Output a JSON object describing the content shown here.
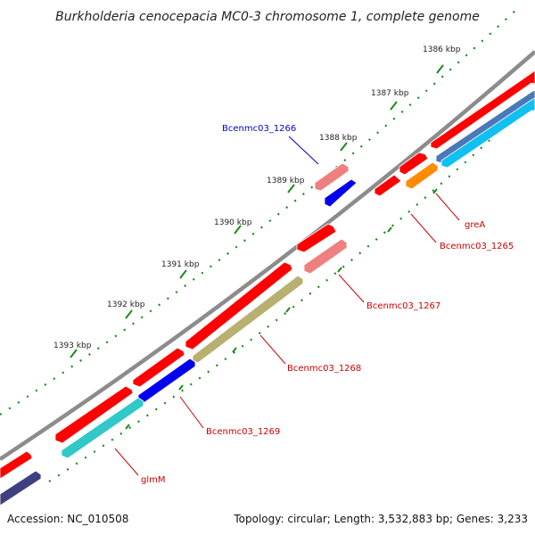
{
  "map": {
    "title": "Burkholderia cenocepacia MC0-3 chromosome 1, complete genome",
    "accession": "Accession: NC_010508",
    "summary": "Topology: circular; Length: 3,532,883 bp; Genes: 3,233"
  },
  "scale": {
    "ticks": [
      "1386 kbp",
      "1387 kbp",
      "1388 kbp",
      "1389 kbp",
      "1390 kbp",
      "1391 kbp",
      "1392 kbp",
      "1393 kbp"
    ]
  },
  "genes": {
    "labels": {
      "bcenmc03_1266": "Bcenmc03_1266",
      "grea": "greA",
      "bcenmc03_1265": "Bcenmc03_1265",
      "bcenmc03_1267": "Bcenmc03_1267",
      "bcenmc03_1268": "Bcenmc03_1268",
      "bcenmc03_1269": "Bcenmc03_1269",
      "glmm": "glmM"
    }
  },
  "colors": {
    "cds": "#ff0000",
    "cds_light": "#f08080",
    "blue": "#0000ee",
    "cyan": "#30c8c8",
    "sky": "#10c0f0",
    "orange": "#ff8c00",
    "olive": "#b8b070",
    "navy": "#404080",
    "backbone": "#8c8c8c",
    "label_blue": "#0000cc",
    "label_red": "#cc0000",
    "tick": "#1a8a1a"
  }
}
